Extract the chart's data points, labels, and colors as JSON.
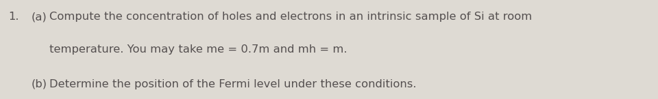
{
  "background_color": "#dedad3",
  "number": "1.",
  "line1_a_label": "(a)",
  "line1_text": "Compute the concentration of holes and electrons in an intrinsic sample of Si at room",
  "line2_text": "temperature. You may take me = 0.7m and mh = m.",
  "line3_b_label": "(b)",
  "line3_text": "Determine the position of the Fermi level under these conditions.",
  "text_color": "#555050",
  "font_size": 11.8,
  "fig_width": 9.6,
  "fig_height": 1.45,
  "dpi": 100
}
